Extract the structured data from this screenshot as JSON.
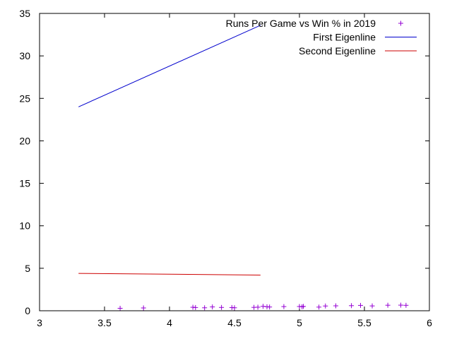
{
  "chart_data": {
    "type": "scatter",
    "xlim": [
      3,
      6
    ],
    "ylim": [
      0,
      35
    ],
    "xticks": [
      3,
      3.5,
      4,
      4.5,
      5,
      5.5,
      6
    ],
    "yticks": [
      0,
      5,
      10,
      15,
      20,
      25,
      30,
      35
    ],
    "xtick_labels": [
      "3",
      "3.5",
      "4",
      "4.5",
      "5",
      "5.5",
      "6"
    ],
    "ytick_labels": [
      "0",
      "5",
      "10",
      "15",
      "20",
      "25",
      "30",
      "35"
    ],
    "grid": false,
    "legend_position": "top-right",
    "series": [
      {
        "name": "Runs Per Game vs Win % in 2019",
        "kind": "points",
        "marker": "+",
        "color": "#9400d3",
        "points": [
          [
            3.62,
            0.29
          ],
          [
            3.8,
            0.33
          ],
          [
            4.18,
            0.41
          ],
          [
            4.2,
            0.38
          ],
          [
            4.27,
            0.35
          ],
          [
            4.33,
            0.45
          ],
          [
            4.4,
            0.39
          ],
          [
            4.48,
            0.38
          ],
          [
            4.5,
            0.35
          ],
          [
            4.65,
            0.4
          ],
          [
            4.68,
            0.42
          ],
          [
            4.72,
            0.52
          ],
          [
            4.75,
            0.47
          ],
          [
            4.77,
            0.44
          ],
          [
            4.88,
            0.49
          ],
          [
            5.0,
            0.5
          ],
          [
            5.02,
            0.47
          ],
          [
            5.03,
            0.51
          ],
          [
            5.15,
            0.43
          ],
          [
            5.2,
            0.56
          ],
          [
            5.28,
            0.58
          ],
          [
            5.4,
            0.6
          ],
          [
            5.47,
            0.63
          ],
          [
            5.56,
            0.57
          ],
          [
            5.68,
            0.65
          ],
          [
            5.78,
            0.66
          ],
          [
            5.82,
            0.64
          ]
        ]
      },
      {
        "name": "First Eigenline",
        "kind": "line",
        "color": "#0000cd",
        "points": [
          [
            3.3,
            24.0
          ],
          [
            4.7,
            33.6
          ]
        ]
      },
      {
        "name": "Second Eigenline",
        "kind": "line",
        "color": "#cd0000",
        "points": [
          [
            3.3,
            4.4
          ],
          [
            4.7,
            4.2
          ]
        ]
      }
    ]
  }
}
